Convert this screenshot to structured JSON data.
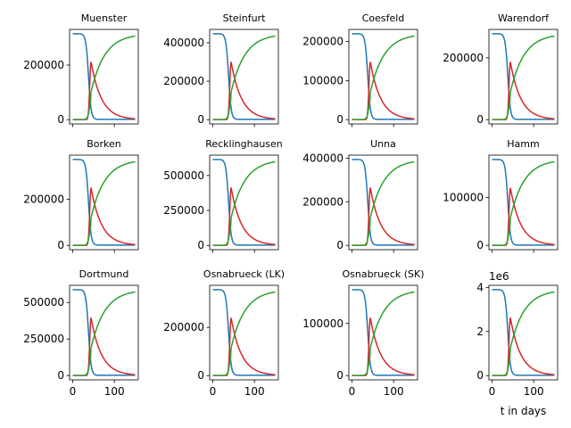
{
  "figure": {
    "xlabel": "t in days",
    "colors": {
      "S": "#1f77b4",
      "I": "#d62728",
      "R": "#2ca02c"
    }
  },
  "chart_data": [
    {
      "type": "line",
      "title": "Muenster",
      "N": 315000,
      "peak": 212000,
      "yticks": [
        0,
        200000
      ],
      "ytick_labels": [
        "0",
        "200000"
      ],
      "ylim": [
        -15750,
        330750
      ],
      "xlim": [
        -7.5,
        157.5
      ],
      "xticks": [
        0,
        100
      ],
      "xtick_labels": [
        "0",
        "100"
      ],
      "show_xtick_labels": false,
      "offset_label": ""
    },
    {
      "type": "line",
      "title": "Steinfurt",
      "N": 447000,
      "peak": 301000,
      "yticks": [
        0,
        200000,
        400000
      ],
      "ytick_labels": [
        "0",
        "200000",
        "400000"
      ],
      "ylim": [
        -22350,
        469350
      ],
      "xlim": [
        -7.5,
        157.5
      ],
      "xticks": [
        0,
        100
      ],
      "xtick_labels": [
        "0",
        "100"
      ],
      "show_xtick_labels": false,
      "offset_label": ""
    },
    {
      "type": "line",
      "title": "Coesfeld",
      "N": 220000,
      "peak": 148000,
      "yticks": [
        0,
        100000,
        200000
      ],
      "ytick_labels": [
        "0",
        "100000",
        "200000"
      ],
      "ylim": [
        -11000,
        231000
      ],
      "xlim": [
        -7.5,
        157.5
      ],
      "xticks": [
        0,
        100
      ],
      "xtick_labels": [
        "0",
        "100"
      ],
      "show_xtick_labels": false,
      "offset_label": ""
    },
    {
      "type": "line",
      "title": "Warendorf",
      "N": 278000,
      "peak": 187000,
      "yticks": [
        0,
        200000
      ],
      "ytick_labels": [
        "0",
        "200000"
      ],
      "ylim": [
        -13900,
        291900
      ],
      "xlim": [
        -7.5,
        157.5
      ],
      "xticks": [
        0,
        100
      ],
      "xtick_labels": [
        "0",
        "100"
      ],
      "show_xtick_labels": false,
      "offset_label": ""
    },
    {
      "type": "line",
      "title": "Borken",
      "N": 372000,
      "peak": 250000,
      "yticks": [
        0,
        200000
      ],
      "ytick_labels": [
        "0",
        "200000"
      ],
      "ylim": [
        -18600,
        390600
      ],
      "xlim": [
        -7.5,
        157.5
      ],
      "xticks": [
        0,
        100
      ],
      "xtick_labels": [
        "0",
        "100"
      ],
      "show_xtick_labels": false,
      "offset_label": ""
    },
    {
      "type": "line",
      "title": "Recklinghausen",
      "N": 615000,
      "peak": 414000,
      "yticks": [
        0,
        250000,
        500000
      ],
      "ytick_labels": [
        "0",
        "250000",
        "500000"
      ],
      "ylim": [
        -30750,
        645750
      ],
      "xlim": [
        -7.5,
        157.5
      ],
      "xticks": [
        0,
        100
      ],
      "xtick_labels": [
        "0",
        "100"
      ],
      "show_xtick_labels": false,
      "offset_label": ""
    },
    {
      "type": "line",
      "title": "Unna",
      "N": 394000,
      "peak": 265000,
      "yticks": [
        0,
        200000,
        400000
      ],
      "ytick_labels": [
        "0",
        "200000",
        "400000"
      ],
      "ylim": [
        -19700,
        413700
      ],
      "xlim": [
        -7.5,
        157.5
      ],
      "xticks": [
        0,
        100
      ],
      "xtick_labels": [
        "0",
        "100"
      ],
      "show_xtick_labels": false,
      "offset_label": ""
    },
    {
      "type": "line",
      "title": "Hamm",
      "N": 179000,
      "peak": 120000,
      "yticks": [
        0,
        100000
      ],
      "ytick_labels": [
        "0",
        "100000"
      ],
      "ylim": [
        -8950,
        187950
      ],
      "xlim": [
        -7.5,
        157.5
      ],
      "xticks": [
        0,
        100
      ],
      "xtick_labels": [
        "0",
        "100"
      ],
      "show_xtick_labels": false,
      "offset_label": ""
    },
    {
      "type": "line",
      "title": "Dortmund",
      "N": 588000,
      "peak": 396000,
      "yticks": [
        0,
        250000,
        500000
      ],
      "ytick_labels": [
        "0",
        "250000",
        "500000"
      ],
      "ylim": [
        -29400,
        617400
      ],
      "xlim": [
        -7.5,
        157.5
      ],
      "xticks": [
        0,
        100
      ],
      "xtick_labels": [
        "0",
        "100"
      ],
      "show_xtick_labels": true,
      "offset_label": ""
    },
    {
      "type": "line",
      "title": "Osnabrueck (LK)",
      "N": 357000,
      "peak": 240000,
      "yticks": [
        0,
        200000
      ],
      "ytick_labels": [
        "0",
        "200000"
      ],
      "ylim": [
        -17850,
        374850
      ],
      "xlim": [
        -7.5,
        157.5
      ],
      "xticks": [
        0,
        100
      ],
      "xtick_labels": [
        "0",
        "100"
      ],
      "show_xtick_labels": true,
      "offset_label": ""
    },
    {
      "type": "line",
      "title": "Osnabrueck (SK)",
      "N": 165000,
      "peak": 111000,
      "yticks": [
        0,
        100000
      ],
      "ytick_labels": [
        "0",
        "100000"
      ],
      "ylim": [
        -8250,
        173250
      ],
      "xlim": [
        -7.5,
        157.5
      ],
      "xticks": [
        0,
        100
      ],
      "xtick_labels": [
        "0",
        "100"
      ],
      "show_xtick_labels": true,
      "offset_label": ""
    },
    {
      "type": "line",
      "title": "",
      "N": 3900000,
      "peak": 2630000,
      "yticks": [
        0,
        2000000,
        4000000
      ],
      "ytick_labels": [
        "0",
        "2",
        "4"
      ],
      "ylim": [
        -195000,
        4095000
      ],
      "xlim": [
        -7.5,
        157.5
      ],
      "xticks": [
        0,
        100
      ],
      "xtick_labels": [
        "0",
        "100"
      ],
      "show_xtick_labels": true,
      "offset_label": "1e6",
      "xlabel": "t in days"
    }
  ]
}
